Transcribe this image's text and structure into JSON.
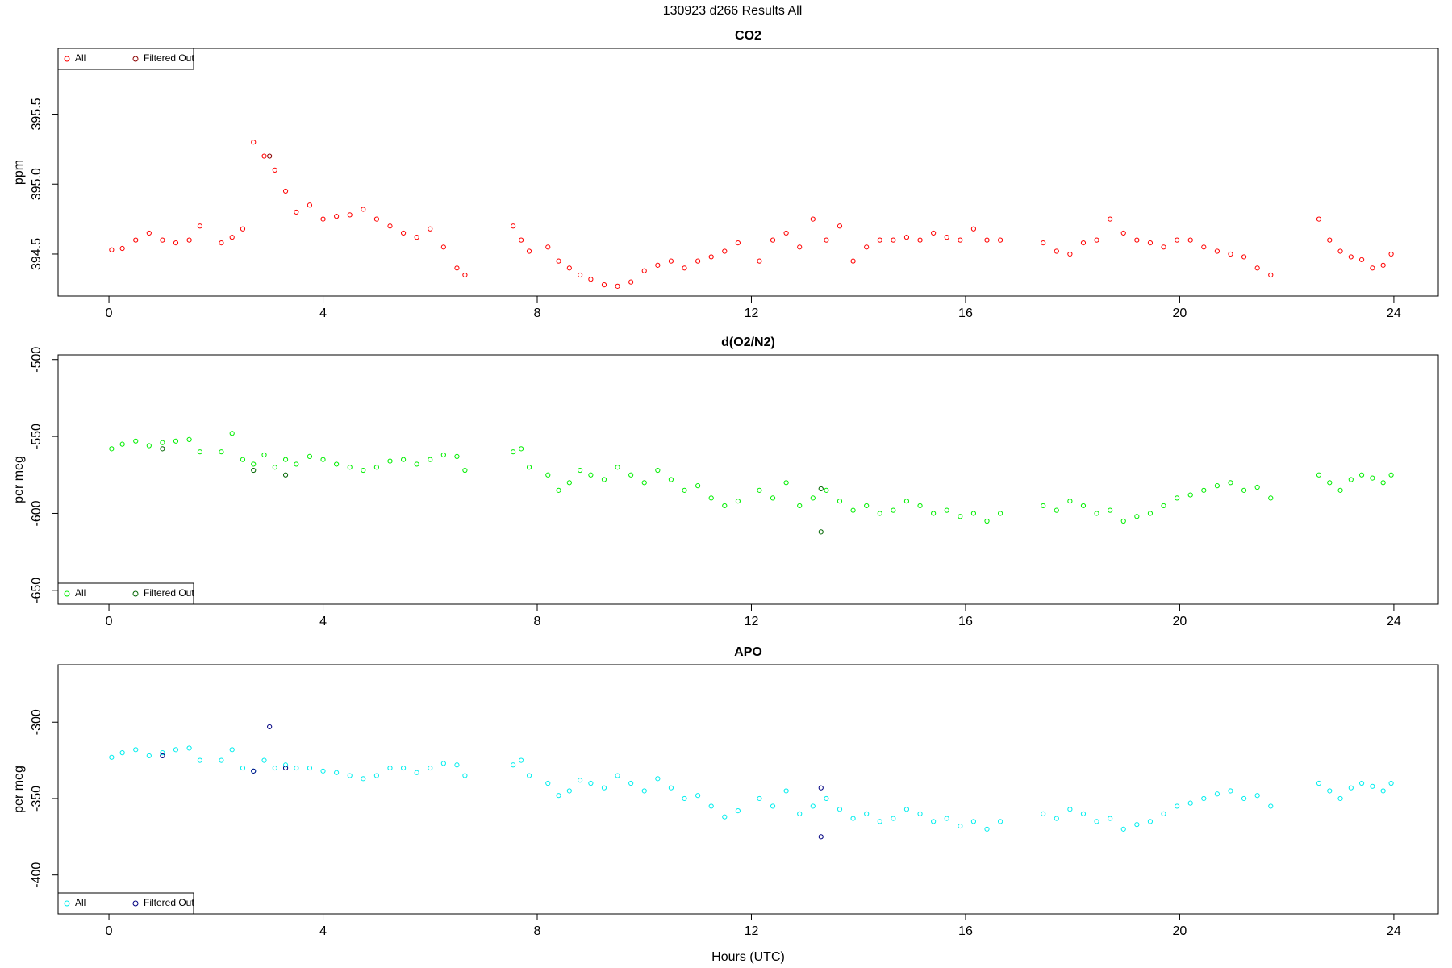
{
  "title": "130923   d266   Results All",
  "chart_data": [
    {
      "type": "scatter",
      "title": "CO2",
      "ylabel": "ppm",
      "legend": "top-left",
      "xlim": [
        -0.95,
        24.83
      ],
      "xticks": [
        0,
        4,
        8,
        12,
        16,
        20,
        24
      ],
      "ylim": [
        394.2,
        395.97
      ],
      "yticks": [
        394.5,
        {
          "value": 395,
          "label": "395.0"
        },
        395.5
      ],
      "series": [
        {
          "name": "All",
          "color": "#ff0000",
          "x": [
            0.05,
            0.25,
            0.5,
            0.75,
            1.0,
            1.25,
            1.5,
            1.7,
            2.1,
            2.3,
            2.5,
            2.7,
            2.9,
            3.1,
            3.3,
            3.5,
            3.75,
            4.0,
            4.25,
            4.5,
            4.75,
            5.0,
            5.25,
            5.5,
            5.75,
            6.0,
            6.25,
            6.5,
            6.65,
            7.55,
            7.7,
            7.85,
            8.2,
            8.4,
            8.6,
            8.8,
            9.0,
            9.25,
            9.5,
            9.75,
            10.0,
            10.25,
            10.5,
            10.75,
            11.0,
            11.25,
            11.5,
            11.75,
            12.15,
            12.4,
            12.65,
            12.9,
            13.15,
            13.4,
            13.65,
            13.9,
            14.15,
            14.4,
            14.65,
            14.9,
            15.15,
            15.4,
            15.65,
            15.9,
            16.15,
            16.4,
            16.65,
            17.45,
            17.7,
            17.95,
            18.2,
            18.45,
            18.7,
            18.95,
            19.2,
            19.45,
            19.7,
            19.95,
            20.2,
            20.45,
            20.7,
            20.95,
            21.2,
            21.45,
            21.7,
            22.6,
            22.8,
            23.0,
            23.2,
            23.4,
            23.6,
            23.8,
            23.95
          ],
          "values": [
            394.53,
            394.54,
            394.6,
            394.65,
            394.6,
            394.58,
            394.6,
            394.7,
            394.58,
            394.62,
            394.68,
            395.3,
            395.2,
            395.1,
            394.95,
            394.8,
            394.85,
            394.75,
            394.77,
            394.78,
            394.82,
            394.75,
            394.7,
            394.65,
            394.62,
            394.68,
            394.55,
            394.4,
            394.35,
            394.7,
            394.6,
            394.52,
            394.55,
            394.45,
            394.4,
            394.35,
            394.32,
            394.28,
            394.27,
            394.3,
            394.38,
            394.42,
            394.45,
            394.4,
            394.45,
            394.48,
            394.52,
            394.58,
            394.45,
            394.6,
            394.65,
            394.55,
            394.75,
            394.6,
            394.7,
            394.45,
            394.55,
            394.6,
            394.6,
            394.62,
            394.6,
            394.65,
            394.62,
            394.6,
            394.68,
            394.6,
            394.6,
            394.58,
            394.52,
            394.5,
            394.58,
            394.6,
            394.75,
            394.65,
            394.6,
            394.58,
            394.55,
            394.6,
            394.6,
            394.55,
            394.52,
            394.5,
            394.48,
            394.4,
            394.35,
            394.75,
            394.6,
            394.52,
            394.48,
            394.46,
            394.4,
            394.42,
            394.5
          ]
        },
        {
          "name": "Filtered Out",
          "color": "#8b0000",
          "x": [
            3.0
          ],
          "values": [
            395.2
          ]
        }
      ]
    },
    {
      "type": "scatter",
      "title": "d(O2/N2)",
      "ylabel": "per meg",
      "legend": "bottom-left",
      "xlim": [
        -0.95,
        24.83
      ],
      "xticks": [
        0,
        4,
        8,
        12,
        16,
        20,
        24
      ],
      "ylim": [
        -659,
        -497
      ],
      "yticks": [
        -650,
        -600,
        -550,
        -500
      ],
      "series": [
        {
          "name": "All",
          "color": "#00ee00",
          "x": [
            0.05,
            0.25,
            0.5,
            0.75,
            1.0,
            1.25,
            1.5,
            1.7,
            2.1,
            2.3,
            2.5,
            2.7,
            2.9,
            3.1,
            3.3,
            3.5,
            3.75,
            4.0,
            4.25,
            4.5,
            4.75,
            5.0,
            5.25,
            5.5,
            5.75,
            6.0,
            6.25,
            6.5,
            6.65,
            7.55,
            7.7,
            7.85,
            8.2,
            8.4,
            8.6,
            8.8,
            9.0,
            9.25,
            9.5,
            9.75,
            10.0,
            10.25,
            10.5,
            10.75,
            11.0,
            11.25,
            11.5,
            11.75,
            12.15,
            12.4,
            12.65,
            12.9,
            13.15,
            13.4,
            13.65,
            13.9,
            14.15,
            14.4,
            14.65,
            14.9,
            15.15,
            15.4,
            15.65,
            15.9,
            16.15,
            16.4,
            16.65,
            17.45,
            17.7,
            17.95,
            18.2,
            18.45,
            18.7,
            18.95,
            19.2,
            19.45,
            19.7,
            19.95,
            20.2,
            20.45,
            20.7,
            20.95,
            21.2,
            21.45,
            21.7,
            22.6,
            22.8,
            23.0,
            23.2,
            23.4,
            23.6,
            23.8,
            23.95
          ],
          "values": [
            -558,
            -555,
            -553,
            -556,
            -554,
            -553,
            -552,
            -560,
            -560,
            -548,
            -565,
            -568,
            -562,
            -570,
            -565,
            -568,
            -563,
            -565,
            -568,
            -570,
            -572,
            -570,
            -566,
            -565,
            -568,
            -565,
            -562,
            -563,
            -572,
            -560,
            -558,
            -570,
            -575,
            -585,
            -580,
            -572,
            -575,
            -578,
            -570,
            -575,
            -580,
            -572,
            -578,
            -585,
            -582,
            -590,
            -595,
            -592,
            -585,
            -590,
            -580,
            -595,
            -590,
            -585,
            -592,
            -598,
            -595,
            -600,
            -598,
            -592,
            -595,
            -600,
            -598,
            -602,
            -600,
            -605,
            -600,
            -595,
            -598,
            -592,
            -595,
            -600,
            -598,
            -605,
            -602,
            -600,
            -595,
            -590,
            -588,
            -585,
            -582,
            -580,
            -585,
            -583,
            -590,
            -575,
            -580,
            -585,
            -578,
            -575,
            -577,
            -580,
            -575
          ]
        },
        {
          "name": "Filtered Out",
          "color": "#006400",
          "x": [
            1.0,
            2.7,
            3.3,
            13.3,
            13.3
          ],
          "values": [
            -558,
            -572,
            -575,
            -612,
            -584
          ]
        }
      ]
    },
    {
      "type": "scatter",
      "title": "APO",
      "ylabel": "per meg",
      "xlabel": "Hours (UTC)",
      "legend": "bottom-left",
      "xlim": [
        -0.95,
        24.83
      ],
      "xticks": [
        0,
        4,
        8,
        12,
        16,
        20,
        24
      ],
      "ylim": [
        -425.5,
        -262.4
      ],
      "yticks": [
        -400,
        -350,
        -300
      ],
      "series": [
        {
          "name": "All",
          "color": "#00eeee",
          "x": [
            0.05,
            0.25,
            0.5,
            0.75,
            1.0,
            1.25,
            1.5,
            1.7,
            2.1,
            2.3,
            2.5,
            2.7,
            2.9,
            3.1,
            3.3,
            3.5,
            3.75,
            4.0,
            4.25,
            4.5,
            4.75,
            5.0,
            5.25,
            5.5,
            5.75,
            6.0,
            6.25,
            6.5,
            6.65,
            7.55,
            7.7,
            7.85,
            8.2,
            8.4,
            8.6,
            8.8,
            9.0,
            9.25,
            9.5,
            9.75,
            10.0,
            10.25,
            10.5,
            10.75,
            11.0,
            11.25,
            11.5,
            11.75,
            12.15,
            12.4,
            12.65,
            12.9,
            13.15,
            13.4,
            13.65,
            13.9,
            14.15,
            14.4,
            14.65,
            14.9,
            15.15,
            15.4,
            15.65,
            15.9,
            16.15,
            16.4,
            16.65,
            17.45,
            17.7,
            17.95,
            18.2,
            18.45,
            18.7,
            18.95,
            19.2,
            19.45,
            19.7,
            19.95,
            20.2,
            20.45,
            20.7,
            20.95,
            21.2,
            21.45,
            21.7,
            22.6,
            22.8,
            23.0,
            23.2,
            23.4,
            23.6,
            23.8,
            23.95
          ],
          "values": [
            -323,
            -320,
            -318,
            -322,
            -320,
            -318,
            -317,
            -325,
            -325,
            -318,
            -330,
            -332,
            -325,
            -330,
            -328,
            -330,
            -330,
            -332,
            -333,
            -335,
            -337,
            -335,
            -330,
            -330,
            -333,
            -330,
            -327,
            -328,
            -335,
            -328,
            -325,
            -335,
            -340,
            -348,
            -345,
            -338,
            -340,
            -343,
            -335,
            -340,
            -345,
            -337,
            -343,
            -350,
            -348,
            -355,
            -362,
            -358,
            -350,
            -355,
            -345,
            -360,
            -355,
            -350,
            -357,
            -363,
            -360,
            -365,
            -363,
            -357,
            -360,
            -365,
            -363,
            -368,
            -365,
            -370,
            -365,
            -360,
            -363,
            -357,
            -360,
            -365,
            -363,
            -370,
            -367,
            -365,
            -360,
            -355,
            -353,
            -350,
            -347,
            -345,
            -350,
            -348,
            -355,
            -340,
            -345,
            -350,
            -343,
            -340,
            -342,
            -345,
            -340
          ]
        },
        {
          "name": "Filtered Out",
          "color": "#000080",
          "x": [
            1.0,
            2.7,
            3.0,
            3.3,
            13.3,
            13.3
          ],
          "values": [
            -322,
            -332,
            -303,
            -330,
            -343,
            -375
          ]
        }
      ]
    }
  ]
}
